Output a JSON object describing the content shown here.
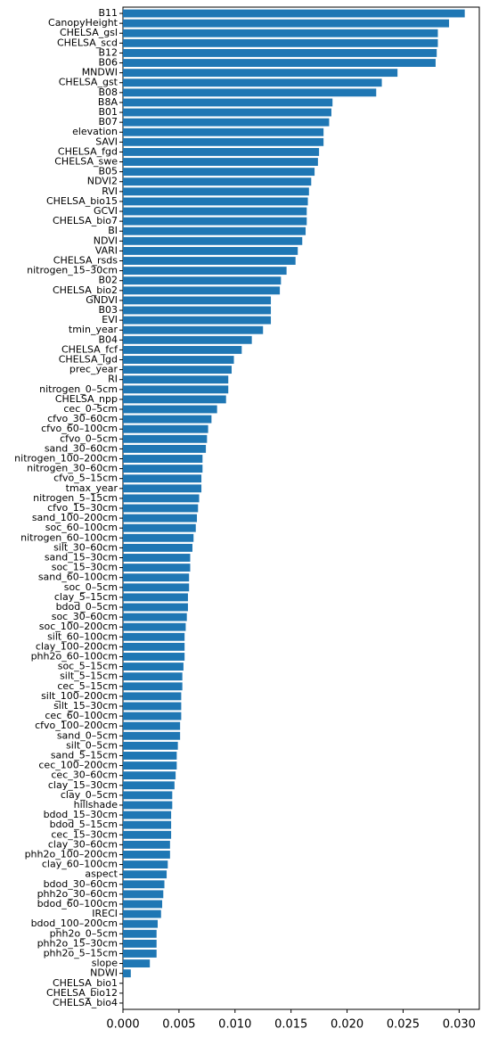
{
  "chart_data": {
    "type": "barh",
    "color": "#1f77b4",
    "categories": [
      "B11",
      "CanopyHeight",
      "CHELSA_gsl",
      "CHELSA_scd",
      "B12",
      "B06",
      "MNDWI",
      "CHELSA_gst",
      "B08",
      "B8A",
      "B01",
      "B07",
      "elevation",
      "SAVI",
      "CHELSA_fgd",
      "CHELSA_swe",
      "B05",
      "NDVI2",
      "RVI",
      "CHELSA_bio15",
      "GCVI",
      "CHELSA_bio7",
      "BI",
      "NDVI",
      "VARI",
      "CHELSA_rsds",
      "nitrogen_15–30cm",
      "B02",
      "CHELSA_bio2",
      "GNDVI",
      "B03",
      "EVI",
      "tmin_year",
      "B04",
      "CHELSA_fcf",
      "CHELSA_lgd",
      "prec_year",
      "RI",
      "nitrogen_0–5cm",
      "CHELSA_npp",
      "cec_0–5cm",
      "cfvo_30–60cm",
      "cfvo_60–100cm",
      "cfvo_0–5cm",
      "sand_30–60cm",
      "nitrogen_100–200cm",
      "nitrogen_30–60cm",
      "cfvo_5–15cm",
      "tmax_year",
      "nitrogen_5–15cm",
      "cfvo_15–30cm",
      "sand_100–200cm",
      "soc_60–100cm",
      "nitrogen_60–100cm",
      "silt_30–60cm",
      "sand_15–30cm",
      "soc_15–30cm",
      "sand_60–100cm",
      "soc_0–5cm",
      "clay_5–15cm",
      "bdod_0–5cm",
      "soc_30–60cm",
      "soc_100–200cm",
      "silt_60–100cm",
      "clay_100–200cm",
      "phh2o_60–100cm",
      "soc_5–15cm",
      "silt_5–15cm",
      "cec_5–15cm",
      "silt_100–200cm",
      "silt_15–30cm",
      "cec_60–100cm",
      "cfvo_100–200cm",
      "sand_0–5cm",
      "silt_0–5cm",
      "sand_5–15cm",
      "cec_100–200cm",
      "cec_30–60cm",
      "clay_15–30cm",
      "clay_0–5cm",
      "hillshade",
      "bdod_15–30cm",
      "bdod_5–15cm",
      "cec_15–30cm",
      "clay_30–60cm",
      "phh2o_100–200cm",
      "clay_60–100cm",
      "aspect",
      "bdod_30–60cm",
      "phh2o_30–60cm",
      "bdod_60–100cm",
      "IRECI",
      "bdod_100–200cm",
      "phh2o_0–5cm",
      "phh2o_15–30cm",
      "phh2o_5–15cm",
      "slope",
      "NDWI",
      "CHELSA_bio1",
      "CHELSA_bio12",
      "CHELSA_bio4"
    ],
    "values": [
      0.0305,
      0.0291,
      0.0281,
      0.0281,
      0.028,
      0.0279,
      0.0245,
      0.0231,
      0.0226,
      0.0187,
      0.0186,
      0.0184,
      0.0179,
      0.0179,
      0.0175,
      0.0174,
      0.0171,
      0.0168,
      0.0166,
      0.0165,
      0.0164,
      0.0164,
      0.0163,
      0.016,
      0.0156,
      0.0154,
      0.0146,
      0.0141,
      0.014,
      0.0132,
      0.0132,
      0.0132,
      0.0125,
      0.0115,
      0.0106,
      0.0099,
      0.0097,
      0.0094,
      0.0094,
      0.0092,
      0.0084,
      0.0079,
      0.0076,
      0.0075,
      0.0074,
      0.0071,
      0.0071,
      0.007,
      0.007,
      0.0068,
      0.0067,
      0.0066,
      0.0065,
      0.0063,
      0.0062,
      0.006,
      0.006,
      0.0059,
      0.0059,
      0.0058,
      0.0058,
      0.0057,
      0.0056,
      0.0055,
      0.0055,
      0.0055,
      0.0054,
      0.0053,
      0.0053,
      0.0052,
      0.0052,
      0.0052,
      0.0051,
      0.0051,
      0.0049,
      0.0048,
      0.0048,
      0.0047,
      0.0046,
      0.0044,
      0.0044,
      0.0043,
      0.0043,
      0.0043,
      0.0042,
      0.0042,
      0.004,
      0.0039,
      0.0037,
      0.0036,
      0.0035,
      0.0034,
      0.0031,
      0.003,
      0.003,
      0.003,
      0.0024,
      0.0007,
      0,
      0,
      0
    ],
    "xlim": [
      0,
      0.0318
    ],
    "xticks": [
      {
        "value": 0,
        "label": "0.000"
      },
      {
        "value": 0.005,
        "label": "0.005"
      },
      {
        "value": 0.01,
        "label": "0.010"
      },
      {
        "value": 0.015,
        "label": "0.015"
      },
      {
        "value": 0.02,
        "label": "0.020"
      },
      {
        "value": 0.025,
        "label": "0.025"
      },
      {
        "value": 0.03,
        "label": "0.030"
      }
    ]
  }
}
